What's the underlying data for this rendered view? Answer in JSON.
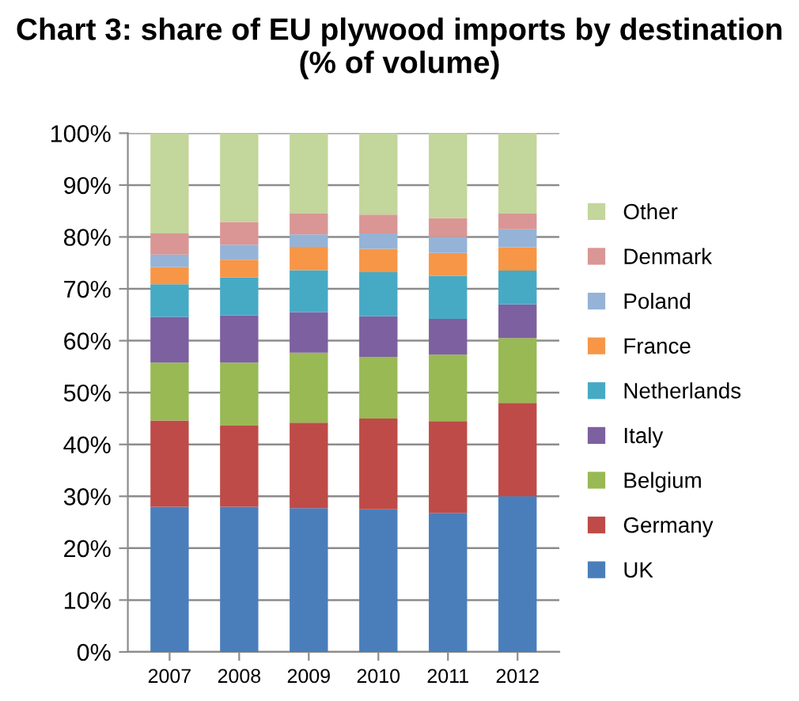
{
  "chart_data": {
    "type": "bar",
    "stacked": true,
    "title": "Chart 3: share of EU plywood imports by destination (% of volume)",
    "categories": [
      "2007",
      "2008",
      "2009",
      "2010",
      "2011",
      "2012"
    ],
    "series": [
      {
        "name": "UK",
        "color": "#4a7ebb",
        "values": [
          28.0,
          28.0,
          27.7,
          27.5,
          26.8,
          30.0
        ]
      },
      {
        "name": "Germany",
        "color": "#be4b48",
        "values": [
          16.6,
          15.6,
          16.5,
          17.5,
          17.7,
          18.0
        ]
      },
      {
        "name": "Belgium",
        "color": "#98b954",
        "values": [
          11.2,
          12.2,
          13.5,
          11.9,
          12.8,
          12.5
        ]
      },
      {
        "name": "Italy",
        "color": "#7d60a0",
        "values": [
          8.8,
          9.1,
          7.8,
          7.8,
          6.9,
          6.5
        ]
      },
      {
        "name": "Netherlands",
        "color": "#46aac5",
        "values": [
          6.3,
          7.3,
          8.1,
          8.5,
          8.3,
          6.5
        ]
      },
      {
        "name": "France",
        "color": "#f79646",
        "values": [
          3.3,
          3.4,
          4.5,
          4.5,
          4.4,
          4.5
        ]
      },
      {
        "name": "Poland",
        "color": "#95b3d7",
        "values": [
          2.4,
          2.9,
          2.4,
          3.0,
          3.1,
          3.5
        ]
      },
      {
        "name": "Denmark",
        "color": "#d99694",
        "values": [
          4.1,
          4.4,
          4.0,
          3.6,
          3.6,
          3.0
        ]
      },
      {
        "name": "Other",
        "color": "#c3d69b",
        "values": [
          19.3,
          17.1,
          15.5,
          15.7,
          16.4,
          15.5
        ]
      }
    ],
    "ylim": [
      0,
      100
    ],
    "yticks": [
      {
        "value": 0,
        "label": "0%"
      },
      {
        "value": 10,
        "label": "10%"
      },
      {
        "value": 20,
        "label": "20%"
      },
      {
        "value": 30,
        "label": "30%"
      },
      {
        "value": 40,
        "label": "40%"
      },
      {
        "value": 50,
        "label": "50%"
      },
      {
        "value": 60,
        "label": "60%"
      },
      {
        "value": 70,
        "label": "70%"
      },
      {
        "value": 80,
        "label": "80%"
      },
      {
        "value": 90,
        "label": "90%"
      },
      {
        "value": 100,
        "label": "100%"
      }
    ],
    "grid": "y",
    "legend": "right"
  }
}
